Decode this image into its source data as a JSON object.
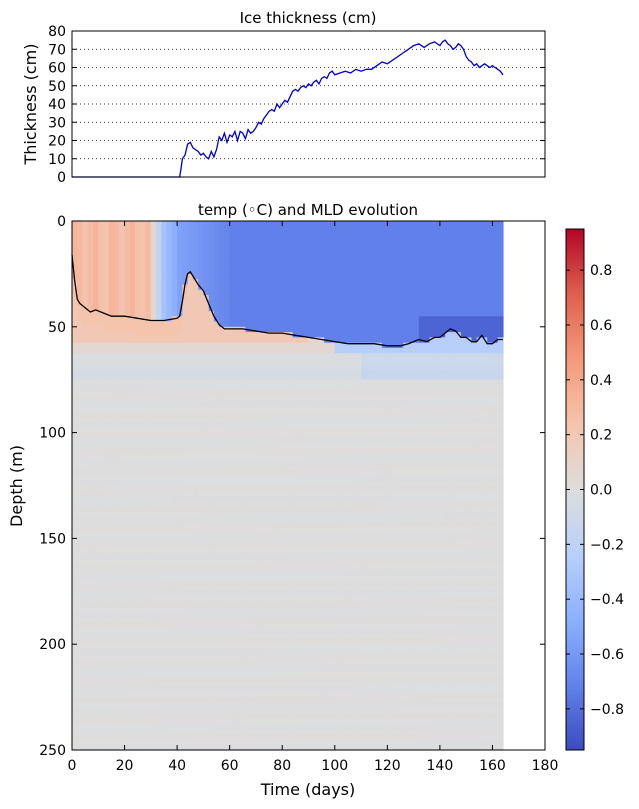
{
  "chart_data": [
    {
      "type": "line",
      "title": "Ice thickness (cm)",
      "xlabel": "",
      "ylabel": "Thickness (cm)",
      "xlim": [
        0,
        180
      ],
      "ylim": [
        0,
        80
      ],
      "yticks": [
        0,
        10,
        20,
        30,
        40,
        50,
        60,
        70,
        80
      ],
      "grid": "y-dotted",
      "color": "#0000cc",
      "series": [
        {
          "x": [
            0,
            10,
            20,
            30,
            40,
            41,
            41.5,
            42,
            43,
            44,
            45,
            46,
            47,
            48,
            49,
            50,
            51,
            52,
            53,
            54,
            55,
            56,
            57,
            58,
            59,
            60,
            61,
            62,
            63,
            64,
            65,
            66,
            67,
            68,
            69,
            70,
            71,
            72,
            73,
            74,
            75,
            76,
            77,
            78,
            79,
            80,
            81,
            82,
            83,
            84,
            85,
            86,
            87,
            88,
            89,
            90,
            91,
            92,
            93,
            94,
            95,
            96,
            97,
            98,
            99,
            100,
            102,
            104,
            106,
            108,
            110,
            112,
            114,
            116,
            118,
            120,
            122,
            124,
            126,
            128,
            130,
            132,
            134,
            136,
            138,
            140,
            141,
            142,
            143,
            144,
            145,
            146,
            147,
            148,
            149,
            150,
            151,
            152,
            153,
            154,
            155,
            156,
            157,
            158,
            159,
            160,
            161,
            162,
            163,
            164
          ],
          "y": [
            0,
            0,
            0,
            0,
            0,
            0,
            5,
            10,
            12,
            18,
            19,
            16,
            15,
            14,
            12,
            13,
            11,
            10,
            14,
            11,
            15,
            22,
            20,
            24,
            19,
            23,
            22,
            25,
            20,
            25,
            24,
            21,
            26,
            24,
            25,
            27,
            30,
            29,
            32,
            34,
            36,
            37,
            36,
            40,
            38,
            40,
            42,
            41,
            44,
            47,
            48,
            47,
            49,
            50,
            49,
            51,
            50,
            52,
            53,
            51,
            54,
            55,
            54,
            57,
            58,
            56,
            57,
            58,
            57,
            59,
            58,
            59,
            59,
            61,
            63,
            62,
            64,
            66,
            68,
            70,
            72,
            73,
            71,
            73,
            74,
            72,
            74,
            75,
            73,
            72,
            70,
            71,
            73,
            72,
            70,
            66,
            64,
            63,
            61,
            62,
            60,
            61,
            62,
            61,
            60,
            61,
            60,
            59,
            58,
            56
          ]
        }
      ]
    },
    {
      "type": "heatmap",
      "title": "temp (◦C) and MLD evolution",
      "xlabel": "Time (days)",
      "ylabel": "Depth (m)",
      "xlim": [
        0,
        180
      ],
      "ylim": [
        250,
        0
      ],
      "xticks": [
        0,
        20,
        40,
        60,
        80,
        100,
        120,
        140,
        160,
        180
      ],
      "yticks": [
        0,
        50,
        100,
        150,
        200,
        250
      ],
      "data_extent_x": [
        0,
        164
      ],
      "colorbar": {
        "colormap": "coolwarm",
        "min": -0.95,
        "max": 0.95,
        "ticks": [
          -0.8,
          -0.6,
          -0.4,
          -0.2,
          0.0,
          0.2,
          0.4,
          0.6,
          0.8
        ],
        "tick_labels": [
          "−0.8",
          "−0.6",
          "−0.4",
          "−0.2",
          "0.0",
          "0.2",
          "0.4",
          "0.6",
          "0.8"
        ]
      },
      "mld_line": {
        "color": "#000000",
        "x": [
          0,
          1,
          2,
          3,
          5,
          7,
          9,
          11,
          13,
          15,
          18,
          20,
          25,
          30,
          35,
          40,
          41,
          42,
          43,
          44,
          45,
          46,
          48,
          50,
          52,
          54,
          56,
          58,
          60,
          65,
          70,
          75,
          80,
          85,
          90,
          95,
          100,
          105,
          110,
          115,
          120,
          125,
          128,
          130,
          132,
          135,
          138,
          140,
          142,
          144,
          146,
          148,
          150,
          152,
          154,
          156,
          158,
          160,
          162,
          164
        ],
        "y": [
          16,
          28,
          37,
          39,
          41,
          43,
          42,
          43,
          44,
          45,
          45,
          45,
          46,
          47,
          47,
          46,
          45,
          38,
          30,
          25,
          24,
          26,
          30,
          33,
          39,
          45,
          49,
          51,
          51,
          51,
          52,
          53,
          53,
          54,
          55,
          56,
          57,
          58,
          58,
          58,
          59,
          59,
          58,
          57,
          56,
          57,
          55,
          55,
          53,
          51,
          52,
          55,
          55,
          57,
          57,
          54,
          58,
          58,
          56,
          56
        ]
      }
    }
  ]
}
